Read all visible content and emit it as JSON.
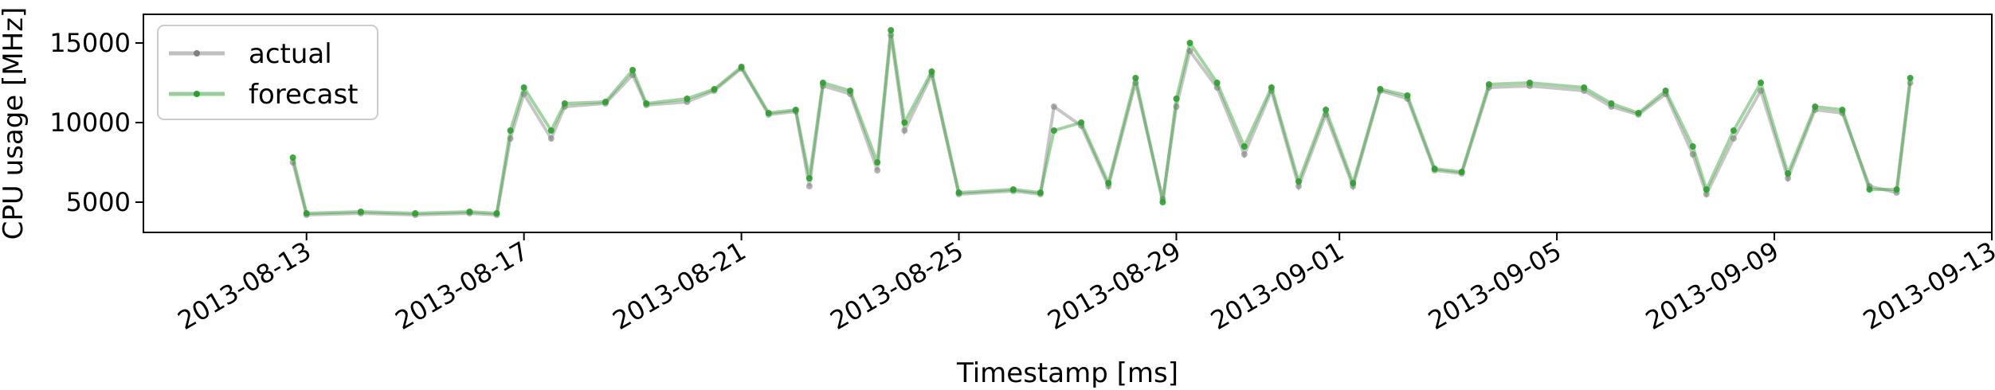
{
  "chart_data": {
    "type": "line",
    "title": "",
    "xlabel": "Timestamp [ms]",
    "ylabel": "CPU usage [MHz]",
    "x_range": [
      "2013-08-10",
      "2013-09-13"
    ],
    "ylim": [
      3100,
      16800
    ],
    "x_ticks": [
      "2013-08-13",
      "2013-08-17",
      "2013-08-21",
      "2013-08-25",
      "2013-08-29",
      "2013-09-01",
      "2013-09-05",
      "2013-09-09",
      "2013-09-13"
    ],
    "y_ticks": [
      5000,
      10000,
      15000
    ],
    "grid": false,
    "legend_position": "top-left",
    "series": [
      {
        "name": "actual",
        "color": "#808080",
        "points": [
          [
            "2013-08-12T18:00",
            7500
          ],
          [
            "2013-08-13T00:00",
            4200
          ],
          [
            "2013-08-14T00:00",
            4300
          ],
          [
            "2013-08-15T00:00",
            4200
          ],
          [
            "2013-08-16T00:00",
            4300
          ],
          [
            "2013-08-16T12:00",
            4200
          ],
          [
            "2013-08-16T18:00",
            9000
          ],
          [
            "2013-08-17T00:00",
            11800
          ],
          [
            "2013-08-17T12:00",
            9000
          ],
          [
            "2013-08-17T18:00",
            11000
          ],
          [
            "2013-08-18T12:00",
            11200
          ],
          [
            "2013-08-19T00:00",
            13000
          ],
          [
            "2013-08-19T06:00",
            11100
          ],
          [
            "2013-08-20T00:00",
            11300
          ],
          [
            "2013-08-20T12:00",
            12000
          ],
          [
            "2013-08-21T00:00",
            13400
          ],
          [
            "2013-08-21T12:00",
            10500
          ],
          [
            "2013-08-22T00:00",
            10700
          ],
          [
            "2013-08-22T06:00",
            6000
          ],
          [
            "2013-08-22T12:00",
            12300
          ],
          [
            "2013-08-23T00:00",
            11800
          ],
          [
            "2013-08-23T12:00",
            7000
          ],
          [
            "2013-08-23T18:00",
            15500
          ],
          [
            "2013-08-24T00:00",
            9500
          ],
          [
            "2013-08-24T12:00",
            13000
          ],
          [
            "2013-08-25T00:00",
            5500
          ],
          [
            "2013-08-26T00:00",
            5700
          ],
          [
            "2013-08-26T12:00",
            5500
          ],
          [
            "2013-08-26T18:00",
            11000
          ],
          [
            "2013-08-27T06:00",
            9800
          ],
          [
            "2013-08-27T18:00",
            6000
          ],
          [
            "2013-08-28T06:00",
            12500
          ],
          [
            "2013-08-28T18:00",
            5200
          ],
          [
            "2013-08-29T00:00",
            11000
          ],
          [
            "2013-08-29T06:00",
            14500
          ],
          [
            "2013-08-29T18:00",
            12200
          ],
          [
            "2013-08-30T06:00",
            8000
          ],
          [
            "2013-08-30T18:00",
            12000
          ],
          [
            "2013-08-31T06:00",
            6000
          ],
          [
            "2013-08-31T18:00",
            10500
          ],
          [
            "2013-09-01T06:00",
            6000
          ],
          [
            "2013-09-01T18:00",
            12000
          ],
          [
            "2013-09-02T06:00",
            11500
          ],
          [
            "2013-09-02T18:00",
            7000
          ],
          [
            "2013-09-03T06:00",
            6800
          ],
          [
            "2013-09-03T18:00",
            12200
          ],
          [
            "2013-09-04T12:00",
            12300
          ],
          [
            "2013-09-05T12:00",
            12000
          ],
          [
            "2013-09-06T00:00",
            11000
          ],
          [
            "2013-09-06T12:00",
            10500
          ],
          [
            "2013-09-07T00:00",
            11800
          ],
          [
            "2013-09-07T12:00",
            8000
          ],
          [
            "2013-09-07T18:00",
            5500
          ],
          [
            "2013-09-08T06:00",
            9000
          ],
          [
            "2013-09-08T18:00",
            12000
          ],
          [
            "2013-09-09T06:00",
            6500
          ],
          [
            "2013-09-09T18:00",
            10800
          ],
          [
            "2013-09-10T06:00",
            10600
          ],
          [
            "2013-09-10T18:00",
            6000
          ],
          [
            "2013-09-11T06:00",
            5600
          ],
          [
            "2013-09-11T12:00",
            12500
          ]
        ]
      },
      {
        "name": "forecast",
        "color": "#2ca02c",
        "points": [
          [
            "2013-08-12T18:00",
            7800
          ],
          [
            "2013-08-13T00:00",
            4300
          ],
          [
            "2013-08-14T00:00",
            4400
          ],
          [
            "2013-08-15T00:00",
            4300
          ],
          [
            "2013-08-16T00:00",
            4400
          ],
          [
            "2013-08-16T12:00",
            4300
          ],
          [
            "2013-08-16T18:00",
            9500
          ],
          [
            "2013-08-17T00:00",
            12200
          ],
          [
            "2013-08-17T12:00",
            9500
          ],
          [
            "2013-08-17T18:00",
            11200
          ],
          [
            "2013-08-18T12:00",
            11300
          ],
          [
            "2013-08-19T00:00",
            13300
          ],
          [
            "2013-08-19T06:00",
            11200
          ],
          [
            "2013-08-20T00:00",
            11500
          ],
          [
            "2013-08-20T12:00",
            12100
          ],
          [
            "2013-08-21T00:00",
            13500
          ],
          [
            "2013-08-21T12:00",
            10600
          ],
          [
            "2013-08-22T00:00",
            10800
          ],
          [
            "2013-08-22T06:00",
            6500
          ],
          [
            "2013-08-22T12:00",
            12500
          ],
          [
            "2013-08-23T00:00",
            12000
          ],
          [
            "2013-08-23T12:00",
            7500
          ],
          [
            "2013-08-23T18:00",
            15800
          ],
          [
            "2013-08-24T00:00",
            10000
          ],
          [
            "2013-08-24T12:00",
            13200
          ],
          [
            "2013-08-25T00:00",
            5600
          ],
          [
            "2013-08-26T00:00",
            5800
          ],
          [
            "2013-08-26T12:00",
            5600
          ],
          [
            "2013-08-26T18:00",
            9500
          ],
          [
            "2013-08-27T06:00",
            10000
          ],
          [
            "2013-08-27T18:00",
            6200
          ],
          [
            "2013-08-28T06:00",
            12800
          ],
          [
            "2013-08-28T18:00",
            5000
          ],
          [
            "2013-08-29T00:00",
            11500
          ],
          [
            "2013-08-29T06:00",
            15000
          ],
          [
            "2013-08-29T18:00",
            12500
          ],
          [
            "2013-08-30T06:00",
            8500
          ],
          [
            "2013-08-30T18:00",
            12200
          ],
          [
            "2013-08-31T06:00",
            6300
          ],
          [
            "2013-08-31T18:00",
            10800
          ],
          [
            "2013-09-01T06:00",
            6200
          ],
          [
            "2013-09-01T18:00",
            12100
          ],
          [
            "2013-09-02T06:00",
            11700
          ],
          [
            "2013-09-02T18:00",
            7100
          ],
          [
            "2013-09-03T06:00",
            6900
          ],
          [
            "2013-09-03T18:00",
            12400
          ],
          [
            "2013-09-04T12:00",
            12500
          ],
          [
            "2013-09-05T12:00",
            12200
          ],
          [
            "2013-09-06T00:00",
            11200
          ],
          [
            "2013-09-06T12:00",
            10600
          ],
          [
            "2013-09-07T00:00",
            12000
          ],
          [
            "2013-09-07T12:00",
            8500
          ],
          [
            "2013-09-07T18:00",
            5800
          ],
          [
            "2013-09-08T06:00",
            9500
          ],
          [
            "2013-09-08T18:00",
            12500
          ],
          [
            "2013-09-09T06:00",
            6800
          ],
          [
            "2013-09-09T18:00",
            11000
          ],
          [
            "2013-09-10T06:00",
            10800
          ],
          [
            "2013-09-10T18:00",
            5800
          ],
          [
            "2013-09-11T06:00",
            5800
          ],
          [
            "2013-09-11T12:00",
            12800
          ]
        ]
      }
    ]
  }
}
